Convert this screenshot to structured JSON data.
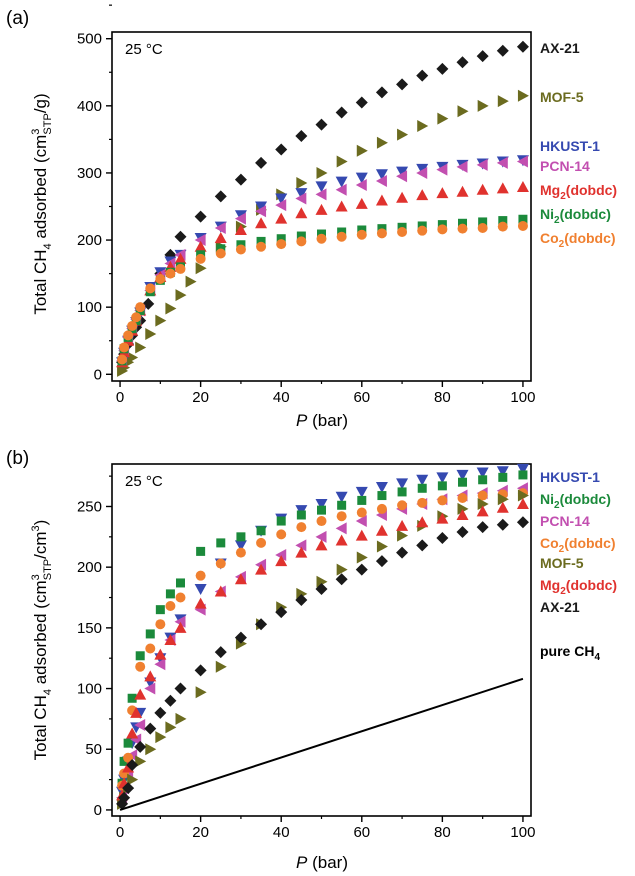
{
  "chart_data": [
    {
      "type": "scatter",
      "panel_label": "(a)",
      "annotation": "25 °C",
      "xlabel": "P (bar)",
      "ylabel": "Total CH4 adsorbed (cm3STP/g)",
      "xlim": [
        -2,
        102
      ],
      "ylim": [
        -10,
        510
      ],
      "xticks": [
        0,
        20,
        40,
        60,
        80,
        100
      ],
      "yticks": [
        0,
        100,
        200,
        300,
        400,
        500
      ],
      "grid": false,
      "legend_position": "right of plot, stacked labels",
      "series": [
        {
          "name": "AX-21",
          "color": "#1a1a1a",
          "marker": "diamond",
          "x": [
            0.5,
            1,
            2,
            3,
            4,
            5,
            7,
            10,
            12.5,
            15,
            20,
            25,
            30,
            35,
            40,
            45,
            50,
            55,
            60,
            65,
            70,
            75,
            80,
            85,
            90,
            95,
            100
          ],
          "y": [
            18,
            30,
            45,
            58,
            70,
            80,
            105,
            150,
            178,
            205,
            235,
            265,
            290,
            315,
            335,
            355,
            372,
            390,
            405,
            420,
            432,
            445,
            455,
            465,
            474,
            482,
            488
          ]
        },
        {
          "name": "MOF-5",
          "color": "#6b6b1f",
          "marker": "triangle-right",
          "x": [
            0.5,
            1,
            2,
            3,
            5,
            7.5,
            10,
            12.5,
            15,
            17.5,
            20,
            25,
            30,
            35,
            40,
            45,
            50,
            55,
            60,
            65,
            70,
            75,
            80,
            85,
            90,
            95,
            100
          ],
          "y": [
            5,
            10,
            18,
            25,
            40,
            60,
            80,
            98,
            118,
            138,
            158,
            190,
            220,
            245,
            268,
            285,
            300,
            317,
            333,
            345,
            357,
            370,
            381,
            392,
            400,
            407,
            415
          ]
        },
        {
          "name": "HKUST-1",
          "color": "#3549b0",
          "marker": "triangle-down",
          "x": [
            0.5,
            1,
            2,
            3,
            4,
            5,
            7.5,
            10,
            12.5,
            15,
            20,
            25,
            30,
            35,
            40,
            45,
            50,
            55,
            60,
            65,
            70,
            75,
            80,
            85,
            90,
            95,
            100
          ],
          "y": [
            18,
            32,
            50,
            65,
            78,
            92,
            130,
            152,
            168,
            178,
            203,
            220,
            237,
            250,
            262,
            270,
            280,
            287,
            293,
            298,
            302,
            306,
            309,
            312,
            314,
            317,
            319
          ]
        },
        {
          "name": "PCN-14",
          "color": "#c24fb0",
          "marker": "triangle-left",
          "x": [
            0.5,
            1,
            2,
            3,
            4,
            5,
            7.5,
            10,
            12.5,
            15,
            20,
            25,
            30,
            35,
            40,
            45,
            50,
            55,
            60,
            65,
            70,
            75,
            80,
            85,
            90,
            95,
            100
          ],
          "y": [
            20,
            35,
            55,
            68,
            82,
            95,
            125,
            148,
            165,
            178,
            200,
            218,
            232,
            243,
            252,
            262,
            268,
            275,
            282,
            288,
            295,
            300,
            305,
            309,
            312,
            315,
            317
          ]
        },
        {
          "name": "Mg2(dobdc)",
          "color": "#e0322e",
          "marker": "triangle-up",
          "x": [
            0.5,
            1,
            2,
            3,
            4,
            5,
            7.5,
            10,
            12.5,
            15,
            20,
            25,
            30,
            35,
            40,
            45,
            50,
            55,
            60,
            65,
            70,
            75,
            80,
            85,
            90,
            95,
            100
          ],
          "y": [
            18,
            33,
            50,
            65,
            80,
            95,
            125,
            145,
            160,
            172,
            190,
            203,
            215,
            225,
            232,
            240,
            245,
            250,
            254,
            259,
            263,
            267,
            270,
            272,
            275,
            277,
            279
          ]
        },
        {
          "name": "Ni2(dobdc)",
          "color": "#1b8a3b",
          "marker": "square",
          "x": [
            0.5,
            1,
            2,
            3,
            4,
            5,
            7.5,
            10,
            12.5,
            15,
            20,
            25,
            30,
            35,
            40,
            45,
            50,
            55,
            60,
            65,
            70,
            75,
            80,
            85,
            90,
            95,
            100
          ],
          "y": [
            20,
            38,
            55,
            68,
            80,
            95,
            123,
            140,
            152,
            160,
            178,
            187,
            193,
            198,
            202,
            206,
            209,
            212,
            215,
            217,
            219,
            221,
            223,
            225,
            227,
            229,
            231
          ]
        },
        {
          "name": "Co2(dobdc)",
          "color": "#f08030",
          "marker": "circle",
          "x": [
            0.5,
            1,
            2,
            3,
            4,
            5,
            7.5,
            10,
            12.5,
            15,
            20,
            25,
            30,
            35,
            40,
            45,
            50,
            55,
            60,
            65,
            70,
            75,
            80,
            85,
            90,
            95,
            100
          ],
          "y": [
            22,
            40,
            58,
            72,
            85,
            100,
            128,
            142,
            150,
            157,
            172,
            180,
            186,
            190,
            194,
            198,
            202,
            205,
            208,
            210,
            212,
            214,
            216,
            217,
            218,
            220,
            221
          ]
        }
      ]
    },
    {
      "type": "scatter",
      "panel_label": "(b)",
      "annotation": "25 °C",
      "xlabel": "P (bar)",
      "ylabel": "Total CH4 adsorbed (cm3STP/cm3)",
      "xlim": [
        -2,
        102
      ],
      "ylim": [
        -5,
        285
      ],
      "xticks": [
        0,
        20,
        40,
        60,
        80,
        100
      ],
      "yticks": [
        0,
        50,
        100,
        150,
        200,
        250
      ],
      "grid": false,
      "legend_position": "right of plot, stacked labels",
      "series": [
        {
          "name": "HKUST-1",
          "color": "#3549b0",
          "marker": "triangle-down",
          "x": [
            0.5,
            1,
            2,
            3,
            4,
            5,
            7.5,
            10,
            12.5,
            15,
            20,
            25,
            30,
            35,
            40,
            45,
            50,
            55,
            60,
            65,
            70,
            75,
            80,
            85,
            90,
            95,
            100
          ],
          "y": [
            15,
            25,
            40,
            55,
            68,
            80,
            105,
            125,
            142,
            157,
            182,
            203,
            218,
            230,
            240,
            247,
            252,
            258,
            262,
            266,
            269,
            272,
            274,
            276,
            278,
            279,
            281
          ]
        },
        {
          "name": "Ni2(dobdc)",
          "color": "#1b8a3b",
          "marker": "square",
          "x": [
            0.5,
            1,
            2,
            3,
            5,
            7.5,
            10,
            12.5,
            15,
            20,
            25,
            30,
            35,
            40,
            45,
            50,
            55,
            60,
            65,
            70,
            75,
            80,
            85,
            90,
            95,
            100
          ],
          "y": [
            22,
            40,
            55,
            92,
            127,
            145,
            165,
            178,
            187,
            213,
            220,
            225,
            230,
            238,
            243,
            247,
            251,
            255,
            259,
            262,
            265,
            267,
            270,
            272,
            274,
            276
          ]
        },
        {
          "name": "PCN-14",
          "color": "#c24fb0",
          "marker": "triangle-left",
          "x": [
            0.5,
            1,
            2,
            3,
            4,
            5,
            7.5,
            10,
            12.5,
            15,
            20,
            25,
            30,
            35,
            40,
            45,
            50,
            55,
            60,
            65,
            70,
            75,
            80,
            85,
            90,
            95,
            100
          ],
          "y": [
            10,
            18,
            32,
            45,
            58,
            70,
            100,
            120,
            140,
            155,
            165,
            180,
            192,
            202,
            210,
            218,
            225,
            232,
            238,
            243,
            248,
            252,
            256,
            259,
            261,
            263,
            265
          ]
        },
        {
          "name": "Co2(dobdc)",
          "color": "#f08030",
          "marker": "circle",
          "x": [
            0.5,
            1,
            2,
            3,
            5,
            7.5,
            10,
            12.5,
            15,
            20,
            25,
            30,
            35,
            40,
            45,
            50,
            55,
            60,
            65,
            70,
            75,
            80,
            85,
            90,
            95,
            100
          ],
          "y": [
            20,
            30,
            43,
            82,
            118,
            133,
            153,
            168,
            175,
            193,
            203,
            212,
            220,
            227,
            233,
            238,
            242,
            245,
            248,
            251,
            253,
            255,
            257,
            259,
            260,
            261
          ]
        },
        {
          "name": "MOF-5",
          "color": "#6b6b1f",
          "marker": "triangle-right",
          "x": [
            0.5,
            1,
            2,
            3,
            5,
            7.5,
            10,
            12.5,
            15,
            20,
            25,
            30,
            35,
            40,
            45,
            50,
            55,
            60,
            65,
            70,
            75,
            80,
            85,
            90,
            95,
            100
          ],
          "y": [
            5,
            10,
            18,
            25,
            40,
            50,
            60,
            68,
            75,
            97,
            118,
            137,
            153,
            167,
            178,
            188,
            198,
            208,
            217,
            226,
            234,
            242,
            248,
            252,
            256,
            259
          ]
        },
        {
          "name": "Mg2(dobdc)",
          "color": "#e0322e",
          "marker": "triangle-up",
          "x": [
            0.5,
            1,
            2,
            3,
            4,
            5,
            7.5,
            10,
            12.5,
            15,
            20,
            25,
            30,
            35,
            40,
            45,
            50,
            55,
            60,
            65,
            70,
            75,
            80,
            85,
            90,
            95,
            100
          ],
          "y": [
            12,
            22,
            35,
            63,
            80,
            95,
            110,
            128,
            140,
            150,
            170,
            180,
            190,
            198,
            205,
            212,
            218,
            222,
            226,
            230,
            234,
            237,
            240,
            243,
            246,
            249,
            252
          ]
        },
        {
          "name": "AX-21",
          "color": "#1a1a1a",
          "marker": "diamond",
          "x": [
            0.5,
            1,
            2,
            3,
            5,
            7.5,
            10,
            12.5,
            15,
            20,
            25,
            30,
            35,
            40,
            45,
            50,
            55,
            60,
            65,
            70,
            75,
            80,
            85,
            90,
            95,
            100
          ],
          "y": [
            5,
            10,
            18,
            37,
            52,
            67,
            80,
            90,
            100,
            115,
            130,
            142,
            153,
            163,
            173,
            182,
            190,
            198,
            205,
            212,
            218,
            224,
            229,
            233,
            235,
            237
          ]
        },
        {
          "name": "pure CH4",
          "color": "#000000",
          "marker": "line",
          "x": [
            0,
            100
          ],
          "y": [
            0,
            108
          ]
        }
      ]
    }
  ]
}
